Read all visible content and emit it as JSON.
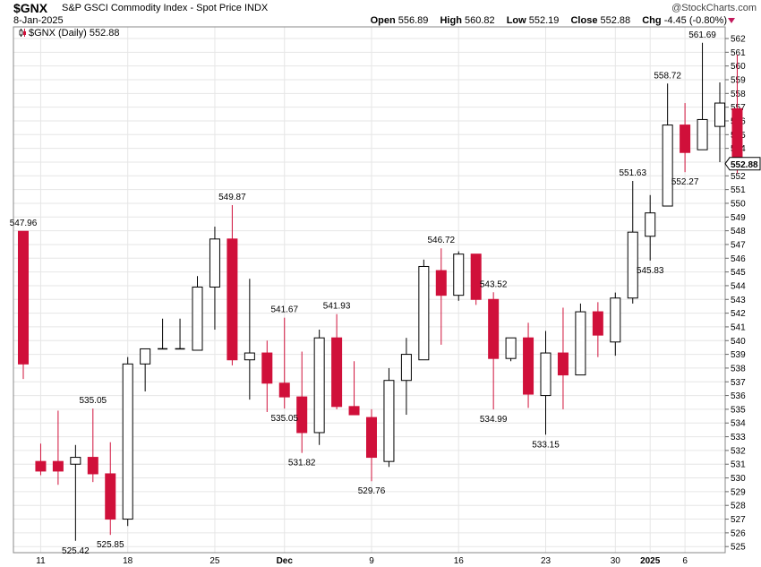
{
  "header": {
    "symbol": "$GNX",
    "name": "S&P GSCI Commodity Index - Spot Price  INDX",
    "brand": "@StockCharts.com",
    "date": "8-Jan-2025",
    "open_label": "Open",
    "open": "556.89",
    "high_label": "High",
    "high": "560.82",
    "low_label": "Low",
    "low": "552.19",
    "close_label": "Close",
    "close": "552.88",
    "chg_label": "Chg",
    "chg": "-4.45 (-0.80%)"
  },
  "colors": {
    "up": "#ffffff",
    "down": "#d0103a",
    "doji": "#000000",
    "wick_up": "#000000",
    "wick_down": "#d0103a",
    "grid": "#e6e6e6"
  },
  "chart_data": {
    "type": "candlestick",
    "legend": "$GNX (Daily) 552.88",
    "last_price_label": "552.88",
    "ylim": [
      524,
      563
    ],
    "yticks": [
      525,
      526,
      527,
      528,
      529,
      530,
      531,
      532,
      533,
      534,
      535,
      536,
      537,
      538,
      539,
      540,
      541,
      542,
      543,
      544,
      545,
      546,
      547,
      548,
      549,
      550,
      551,
      552,
      553,
      554,
      555,
      556,
      557,
      558,
      559,
      560,
      561,
      562
    ],
    "xticks": [
      {
        "label": "11",
        "index": 1
      },
      {
        "label": "18",
        "index": 6
      },
      {
        "label": "25",
        "index": 11
      },
      {
        "label": "Dec",
        "index": 15,
        "bold": true
      },
      {
        "label": "9",
        "index": 20
      },
      {
        "label": "16",
        "index": 25
      },
      {
        "label": "23",
        "index": 30
      },
      {
        "label": "30",
        "index": 34
      },
      {
        "label": "2025",
        "index": 36,
        "bold": true
      },
      {
        "label": "6",
        "index": 38
      }
    ],
    "candles": [
      {
        "o": 547.96,
        "h": 547.96,
        "l": 537.2,
        "c": 538.3
      },
      {
        "o": 531.2,
        "h": 532.5,
        "l": 530.2,
        "c": 530.5
      },
      {
        "o": 531.2,
        "h": 534.9,
        "l": 529.5,
        "c": 530.5
      },
      {
        "o": 531.0,
        "h": 532.4,
        "l": 525.42,
        "c": 531.5
      },
      {
        "o": 531.5,
        "h": 535.05,
        "l": 529.7,
        "c": 530.3
      },
      {
        "o": 530.3,
        "h": 532.6,
        "l": 525.85,
        "c": 527.0
      },
      {
        "o": 527.0,
        "h": 538.8,
        "l": 526.5,
        "c": 538.3
      },
      {
        "o": 538.3,
        "h": 539.4,
        "l": 536.3,
        "c": 539.4
      },
      {
        "o": 539.4,
        "h": 541.6,
        "l": 539.4,
        "c": 539.4
      },
      {
        "o": 539.4,
        "h": 541.6,
        "l": 539.4,
        "c": 539.4
      },
      {
        "o": 539.3,
        "h": 544.7,
        "l": 539.3,
        "c": 543.9
      },
      {
        "o": 543.9,
        "h": 548.3,
        "l": 540.8,
        "c": 547.4
      },
      {
        "o": 547.4,
        "h": 549.87,
        "l": 538.2,
        "c": 538.6
      },
      {
        "o": 538.6,
        "h": 544.5,
        "l": 535.7,
        "c": 539.1
      },
      {
        "o": 539.1,
        "h": 540.0,
        "l": 534.8,
        "c": 536.9
      },
      {
        "o": 536.9,
        "h": 541.67,
        "l": 535.05,
        "c": 535.9
      },
      {
        "o": 535.9,
        "h": 539.2,
        "l": 531.82,
        "c": 533.3
      },
      {
        "o": 533.3,
        "h": 540.8,
        "l": 532.4,
        "c": 540.2
      },
      {
        "o": 540.2,
        "h": 541.93,
        "l": 535.0,
        "c": 535.2
      },
      {
        "o": 535.2,
        "h": 538.5,
        "l": 534.6,
        "c": 534.6
      },
      {
        "o": 534.4,
        "h": 535.0,
        "l": 529.76,
        "c": 531.5
      },
      {
        "o": 531.2,
        "h": 538.0,
        "l": 530.8,
        "c": 537.1
      },
      {
        "o": 537.1,
        "h": 540.2,
        "l": 534.6,
        "c": 539.0
      },
      {
        "o": 538.6,
        "h": 545.9,
        "l": 538.6,
        "c": 545.4
      },
      {
        "o": 545.1,
        "h": 546.72,
        "l": 539.7,
        "c": 543.3
      },
      {
        "o": 543.3,
        "h": 546.5,
        "l": 542.9,
        "c": 546.3
      },
      {
        "o": 546.3,
        "h": 546.3,
        "l": 542.6,
        "c": 543.0
      },
      {
        "o": 543.0,
        "h": 543.52,
        "l": 534.99,
        "c": 538.7
      },
      {
        "o": 538.7,
        "h": 540.2,
        "l": 538.5,
        "c": 540.2
      },
      {
        "o": 540.2,
        "h": 541.3,
        "l": 535.1,
        "c": 536.1
      },
      {
        "o": 536.0,
        "h": 540.7,
        "l": 533.15,
        "c": 539.1
      },
      {
        "o": 539.1,
        "h": 542.4,
        "l": 535.0,
        "c": 537.5
      },
      {
        "o": 537.5,
        "h": 542.7,
        "l": 537.5,
        "c": 542.1
      },
      {
        "o": 542.1,
        "h": 542.8,
        "l": 538.8,
        "c": 540.4
      },
      {
        "o": 539.9,
        "h": 543.5,
        "l": 538.9,
        "c": 543.1
      },
      {
        "o": 543.1,
        "h": 551.63,
        "l": 542.7,
        "c": 547.9
      },
      {
        "o": 547.6,
        "h": 550.6,
        "l": 545.83,
        "c": 549.3
      },
      {
        "o": 549.8,
        "h": 558.72,
        "l": 549.8,
        "c": 555.7
      },
      {
        "o": 555.7,
        "h": 557.3,
        "l": 552.27,
        "c": 553.7
      },
      {
        "o": 553.9,
        "h": 561.69,
        "l": 553.9,
        "c": 556.1
      },
      {
        "o": 555.6,
        "h": 558.8,
        "l": 553.0,
        "c": 557.3
      },
      {
        "o": 556.89,
        "h": 560.82,
        "l": 552.19,
        "c": 552.88
      }
    ],
    "annotations": [
      {
        "index": 0,
        "value": 547.96,
        "label": "547.96",
        "pos": "above"
      },
      {
        "index": 3,
        "value": 525.42,
        "label": "525.42",
        "pos": "below"
      },
      {
        "index": 4,
        "value": 535.05,
        "label": "535.05",
        "pos": "above"
      },
      {
        "index": 5,
        "value": 525.85,
        "label": "525.85",
        "pos": "below"
      },
      {
        "index": 12,
        "value": 549.87,
        "label": "549.87",
        "pos": "above"
      },
      {
        "index": 15,
        "value": 541.67,
        "label": "541.67",
        "pos": "above"
      },
      {
        "index": 15,
        "value": 535.05,
        "label": "535.05",
        "pos": "below"
      },
      {
        "index": 16,
        "value": 531.82,
        "label": "531.82",
        "pos": "below"
      },
      {
        "index": 18,
        "value": 541.93,
        "label": "541.93",
        "pos": "above"
      },
      {
        "index": 20,
        "value": 529.76,
        "label": "529.76",
        "pos": "below"
      },
      {
        "index": 24,
        "value": 546.72,
        "label": "546.72",
        "pos": "above"
      },
      {
        "index": 27,
        "value": 543.52,
        "label": "543.52",
        "pos": "above"
      },
      {
        "index": 27,
        "value": 534.99,
        "label": "534.99",
        "pos": "below"
      },
      {
        "index": 30,
        "value": 533.15,
        "label": "533.15",
        "pos": "below"
      },
      {
        "index": 35,
        "value": 551.63,
        "label": "551.63",
        "pos": "above"
      },
      {
        "index": 36,
        "value": 545.83,
        "label": "545.83",
        "pos": "below"
      },
      {
        "index": 37,
        "value": 558.72,
        "label": "558.72",
        "pos": "above"
      },
      {
        "index": 38,
        "value": 552.27,
        "label": "552.27",
        "pos": "below"
      },
      {
        "index": 39,
        "value": 561.69,
        "label": "561.69",
        "pos": "above"
      }
    ]
  }
}
